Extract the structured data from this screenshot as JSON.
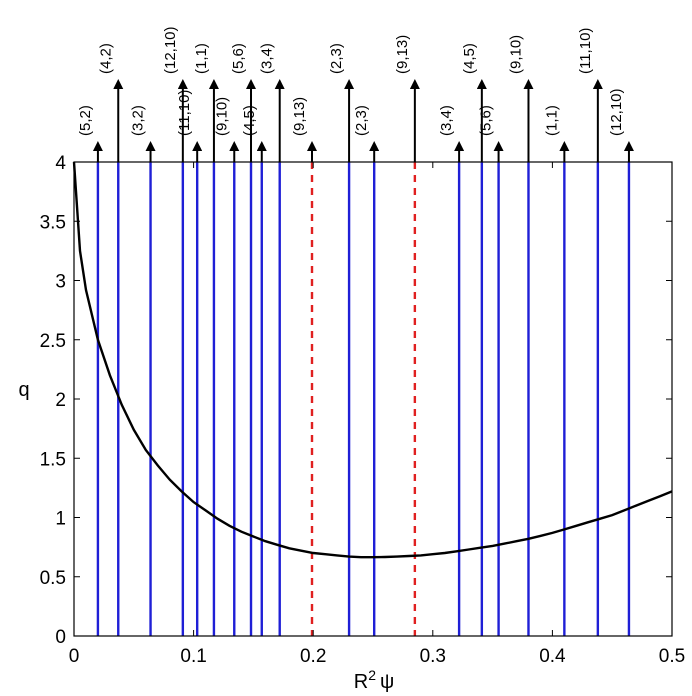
{
  "chart_data": {
    "type": "line",
    "xlabel": "R",
    "xlabel_sup": "2",
    "xlabel_sym": "ψ",
    "ylabel": "q",
    "xlim": [
      0,
      0.5
    ],
    "ylim": [
      0,
      4
    ],
    "xticks": [
      0,
      0.1,
      0.2,
      0.3,
      0.4,
      0.5
    ],
    "xtick_labels": [
      "0",
      "0.1",
      "0.2",
      "0.3",
      "0.4",
      "0.5"
    ],
    "yticks": [
      0,
      0.5,
      1,
      1.5,
      2,
      2.5,
      3,
      3.5,
      4
    ],
    "ytick_labels": [
      "0",
      "0.5",
      "1",
      "1.5",
      "2",
      "2.5",
      "3",
      "3.5",
      "4"
    ],
    "grid": false,
    "series": [
      {
        "color": "#000000",
        "x": [
          0,
          0.005,
          0.01,
          0.02,
          0.03,
          0.04,
          0.05,
          0.06,
          0.07,
          0.08,
          0.09,
          0.1,
          0.11,
          0.12,
          0.13,
          0.14,
          0.15,
          0.16,
          0.17,
          0.18,
          0.19,
          0.2,
          0.21,
          0.22,
          0.23,
          0.24,
          0.25,
          0.26,
          0.27,
          0.28,
          0.29,
          0.3,
          0.31,
          0.32,
          0.33,
          0.34,
          0.35,
          0.36,
          0.37,
          0.38,
          0.39,
          0.4,
          0.41,
          0.42,
          0.43,
          0.44,
          0.45,
          0.46,
          0.47,
          0.48,
          0.49,
          0.5
        ],
        "y": [
          4.0,
          3.25,
          2.92,
          2.5,
          2.2,
          1.95,
          1.74,
          1.57,
          1.44,
          1.32,
          1.22,
          1.13,
          1.06,
          0.99,
          0.93,
          0.88,
          0.84,
          0.8,
          0.77,
          0.74,
          0.72,
          0.7,
          0.69,
          0.68,
          0.67,
          0.665,
          0.665,
          0.667,
          0.67,
          0.675,
          0.68,
          0.69,
          0.7,
          0.715,
          0.73,
          0.745,
          0.76,
          0.78,
          0.8,
          0.82,
          0.845,
          0.87,
          0.9,
          0.93,
          0.96,
          0.99,
          1.02,
          1.06,
          1.1,
          1.14,
          1.18,
          1.22
        ]
      }
    ],
    "resonances": [
      {
        "x": 0.02,
        "label": "(5,2)",
        "style": "solid",
        "color": "#1f1fd6"
      },
      {
        "x": 0.037,
        "label": "(4,2)",
        "style": "solid",
        "color": "#1f1fd6"
      },
      {
        "x": 0.064,
        "label": "(3,2)",
        "style": "solid",
        "color": "#1f1fd6"
      },
      {
        "x": 0.091,
        "label": "(12,10)",
        "style": "solid",
        "color": "#1f1fd6"
      },
      {
        "x": 0.103,
        "label": "(11,10)",
        "style": "solid",
        "color": "#1f1fd6"
      },
      {
        "x": 0.117,
        "label": "(1,1)",
        "style": "solid",
        "color": "#1f1fd6"
      },
      {
        "x": 0.134,
        "label": "(9,10)",
        "style": "solid",
        "color": "#1f1fd6"
      },
      {
        "x": 0.148,
        "label": "(5,6)",
        "style": "solid",
        "color": "#1f1fd6"
      },
      {
        "x": 0.157,
        "label": "(4,5)",
        "style": "solid",
        "color": "#1f1fd6"
      },
      {
        "x": 0.172,
        "label": "(3,4)",
        "style": "solid",
        "color": "#1f1fd6"
      },
      {
        "x": 0.199,
        "label": "(9,13)",
        "style": "dashed",
        "color": "#e02020"
      },
      {
        "x": 0.23,
        "label": "(2,3)",
        "style": "solid",
        "color": "#1f1fd6"
      },
      {
        "x": 0.251,
        "label": "(2,3)",
        "style": "solid",
        "color": "#1f1fd6"
      },
      {
        "x": 0.285,
        "label": "(9,13)",
        "style": "dashed",
        "color": "#e02020"
      },
      {
        "x": 0.322,
        "label": "(3,4)",
        "style": "solid",
        "color": "#1f1fd6"
      },
      {
        "x": 0.341,
        "label": "(4,5)",
        "style": "solid",
        "color": "#1f1fd6"
      },
      {
        "x": 0.355,
        "label": "(5,6)",
        "style": "solid",
        "color": "#1f1fd6"
      },
      {
        "x": 0.38,
        "label": "(9,10)",
        "style": "solid",
        "color": "#1f1fd6"
      },
      {
        "x": 0.41,
        "label": "(1,1)",
        "style": "solid",
        "color": "#1f1fd6"
      },
      {
        "x": 0.438,
        "label": "(11,10)",
        "style": "solid",
        "color": "#1f1fd6"
      },
      {
        "x": 0.464,
        "label": "(12,10)",
        "style": "solid",
        "color": "#1f1fd6"
      }
    ]
  }
}
